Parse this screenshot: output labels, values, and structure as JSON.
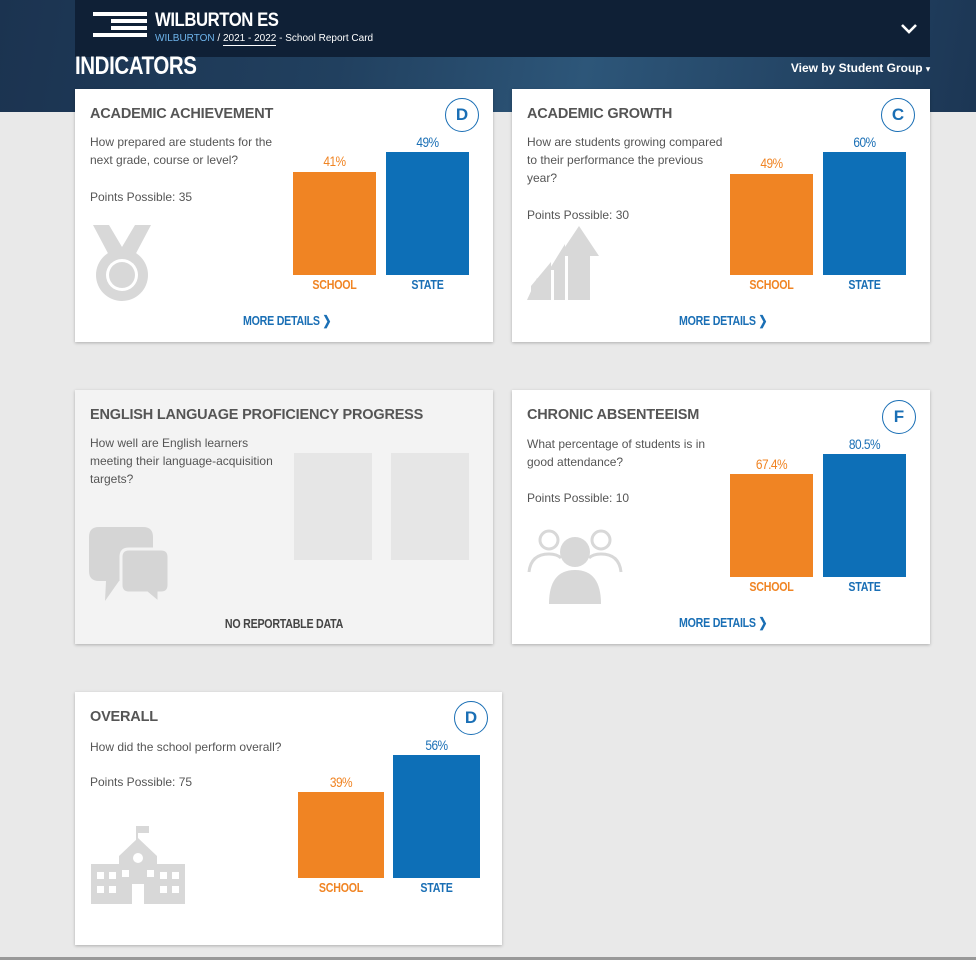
{
  "header": {
    "school_name": "WILBURTON ES",
    "district": "WILBURTON",
    "separator": "/",
    "year": "2021 - 2022",
    "report": "- School Report Card",
    "section_title": "INDICATORS",
    "view_by": "View by Student Group"
  },
  "cards": {
    "academic_achievement": {
      "title": "ACADEMIC ACHIEVEMENT",
      "grade": "D",
      "question": "How prepared are students for the next grade, course or level?",
      "points": "Points Possible: 35",
      "icon": "medal-icon",
      "school_value": "41%",
      "state_value": "49%",
      "school_label": "SCHOOL",
      "state_label": "STATE",
      "more": "MORE DETAILS"
    },
    "academic_growth": {
      "title": "ACADEMIC GROWTH",
      "grade": "C",
      "question": "How are students growing compared to their performance the previous year?",
      "points": "Points Possible: 30",
      "icon": "growth-arrows-icon",
      "school_value": "49%",
      "state_value": "60%",
      "school_label": "SCHOOL",
      "state_label": "STATE",
      "more": "MORE DETAILS"
    },
    "english_proficiency": {
      "title": "ENGLISH LANGUAGE PROFICIENCY PROGRESS",
      "question": "How well are English learners meeting their language-acquisition targets?",
      "icon": "speech-bubbles-icon",
      "no_data": "NO REPORTABLE DATA"
    },
    "chronic_absenteeism": {
      "title": "CHRONIC ABSENTEEISM",
      "grade": "F",
      "question": "What percentage of students is in good attendance?",
      "points": "Points Possible: 10",
      "icon": "people-group-icon",
      "school_value": "67.4%",
      "state_value": "80.5%",
      "school_label": "SCHOOL",
      "state_label": "STATE",
      "more": "MORE DETAILS"
    },
    "overall": {
      "title": "OVERALL",
      "grade": "D",
      "question": "How did the school perform overall?",
      "points": "Points Possible: 75",
      "icon": "school-building-icon",
      "school_value": "39%",
      "state_value": "56%",
      "school_label": "SCHOOL",
      "state_label": "STATE"
    }
  },
  "colors": {
    "school": "#f08423",
    "state": "#0d6fb7",
    "header": "#0f2036"
  }
}
